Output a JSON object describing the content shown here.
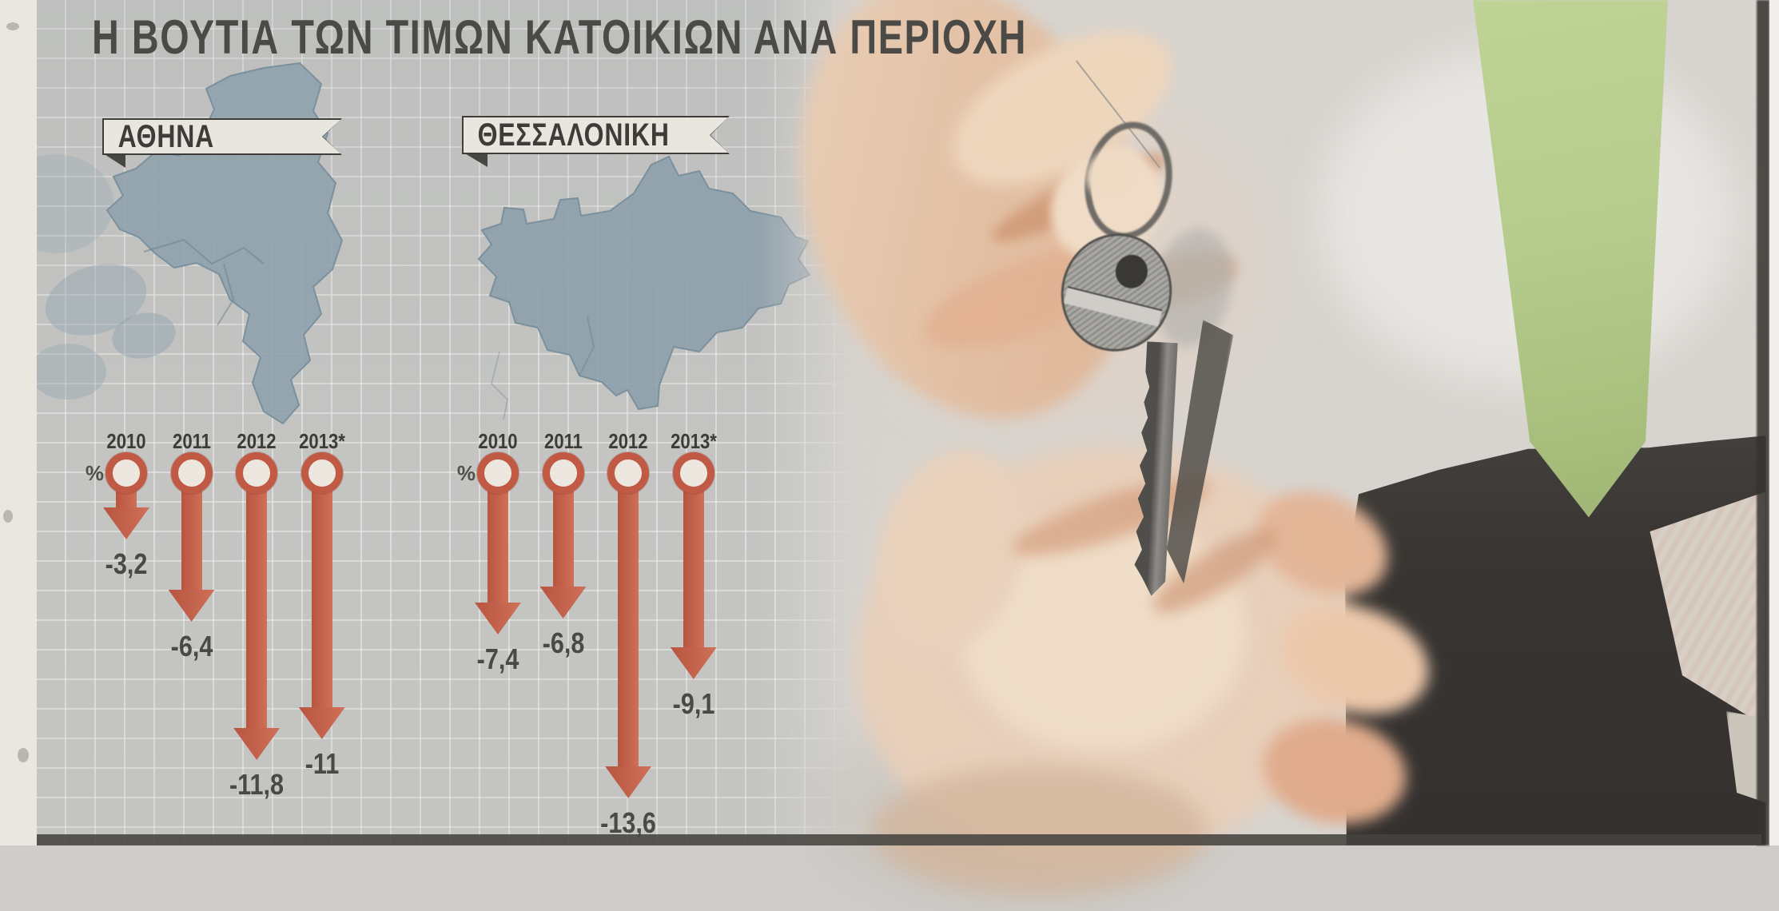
{
  "title": "Η ΒΟΥΤΙΑ ΤΩΝ ΤΙΜΩΝ ΚΑΤΟΙΚΙΩΝ ΑΝΑ ΠΕΡΙΟΧΗ",
  "charts": [
    {
      "region": "ΑΘΗΝΑ",
      "percent_label": "%",
      "years": [
        "2010",
        "2011",
        "2012",
        "2013*"
      ],
      "values": [
        -3.2,
        -6.4,
        -11.8,
        -11
      ],
      "value_labels": [
        "-3,2",
        "-6,4",
        "-11,8",
        "-11"
      ]
    },
    {
      "region": "ΘΕΣΣΑΛΟΝΙΚΗ",
      "percent_label": "%",
      "years": [
        "2010",
        "2011",
        "2012",
        "2013*"
      ],
      "values": [
        -7.4,
        -6.8,
        -13.6,
        -9.1
      ],
      "value_labels": [
        "-7,4",
        "-6,8",
        "-13,6",
        "-9,1"
      ]
    }
  ],
  "chart_data": [
    {
      "type": "bar",
      "title": "ΑΘΗΝΑ",
      "unit": "%",
      "categories": [
        "2010",
        "2011",
        "2012",
        "2013*"
      ],
      "values": [
        -3.2,
        -6.4,
        -11.8,
        -11
      ],
      "orientation": "vertical-down-arrows",
      "ylim": [
        -14,
        0
      ]
    },
    {
      "type": "bar",
      "title": "ΘΕΣΣΑΛΟΝΙΚΗ",
      "unit": "%",
      "categories": [
        "2010",
        "2011",
        "2012",
        "2013*"
      ],
      "values": [
        -7.4,
        -6.8,
        -13.6,
        -9.1
      ],
      "orientation": "vertical-down-arrows",
      "ylim": [
        -14,
        0
      ]
    }
  ],
  "colors": {
    "arrow_red": "#c25c46",
    "map_blue": "#8da0ac",
    "tie_green": "#b5cb8c",
    "suit_dark": "#3a3734",
    "grid_paper": "#c2c3c1",
    "photo_paper": "#d7d4cf",
    "text_dark": "#45443f"
  }
}
